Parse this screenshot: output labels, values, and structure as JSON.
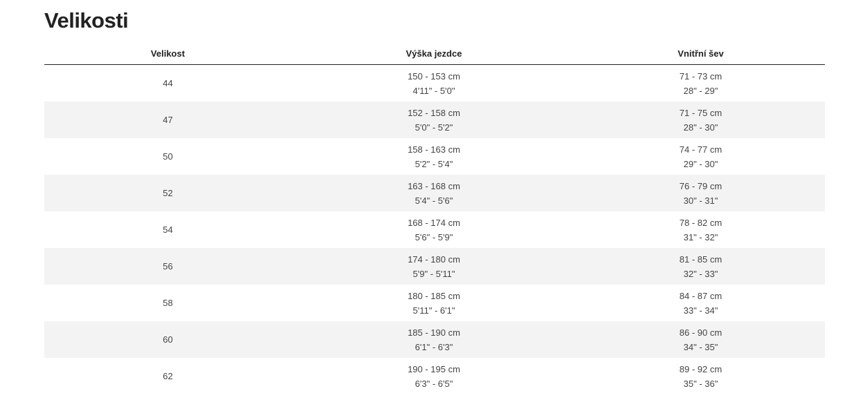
{
  "title": "Velikosti",
  "table": {
    "headers": [
      "Velikost",
      "Výška jezdce",
      "Vnitřní šev"
    ],
    "rows": [
      {
        "size": "44",
        "height_cm": "150 - 153 cm",
        "height_ft": "4'11\" - 5'0\"",
        "inseam_cm": "71 - 73 cm",
        "inseam_in": "28\" - 29\""
      },
      {
        "size": "47",
        "height_cm": "152 - 158 cm",
        "height_ft": "5'0\" - 5'2\"",
        "inseam_cm": "71 - 75 cm",
        "inseam_in": "28\" - 30\""
      },
      {
        "size": "50",
        "height_cm": "158 - 163 cm",
        "height_ft": "5'2\" - 5'4\"",
        "inseam_cm": "74 - 77 cm",
        "inseam_in": "29\" - 30\""
      },
      {
        "size": "52",
        "height_cm": "163 - 168 cm",
        "height_ft": "5'4\" - 5'6\"",
        "inseam_cm": "76 - 79 cm",
        "inseam_in": "30\" - 31\""
      },
      {
        "size": "54",
        "height_cm": "168 - 174 cm",
        "height_ft": "5'6\" - 5'9\"",
        "inseam_cm": "78 - 82 cm",
        "inseam_in": "31\" - 32\""
      },
      {
        "size": "56",
        "height_cm": "174 - 180 cm",
        "height_ft": "5'9\" - 5'11\"",
        "inseam_cm": "81 - 85 cm",
        "inseam_in": "32\" - 33\""
      },
      {
        "size": "58",
        "height_cm": "180 - 185 cm",
        "height_ft": "5'11\" - 6'1\"",
        "inseam_cm": "84 - 87 cm",
        "inseam_in": "33\" - 34\""
      },
      {
        "size": "60",
        "height_cm": "185 - 190 cm",
        "height_ft": "6'1\" - 6'3\"",
        "inseam_cm": "86 - 90 cm",
        "inseam_in": "34\" - 35\""
      },
      {
        "size": "62",
        "height_cm": "190 - 195 cm",
        "height_ft": "6'3\" - 6'5\"",
        "inseam_cm": "89 - 92 cm",
        "inseam_in": "35\" - 36\""
      }
    ]
  }
}
